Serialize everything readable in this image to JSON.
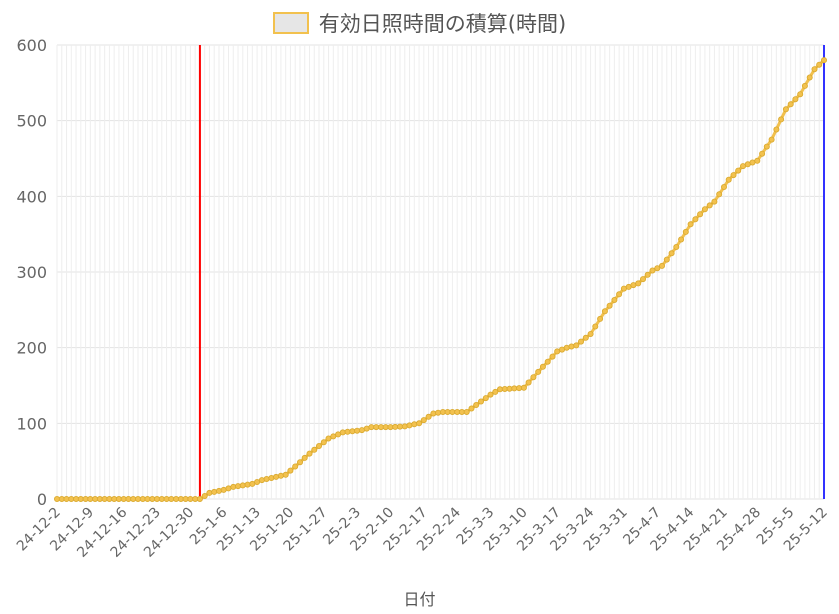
{
  "chart_data": {
    "type": "line",
    "title": "",
    "xlabel": "日付",
    "ylabel": "",
    "ylim": [
      0,
      600
    ],
    "yticks": [
      0,
      100,
      200,
      300,
      400,
      500,
      600
    ],
    "grid": true,
    "legend_position": "top",
    "x_tick_labels": [
      "24-12-2",
      "24-12-9",
      "24-12-16",
      "24-12-23",
      "24-12-30",
      "25-1-6",
      "25-1-13",
      "25-1-20",
      "25-1-27",
      "25-2-3",
      "25-2-10",
      "25-2-17",
      "25-2-24",
      "25-3-3",
      "25-3-10",
      "25-3-17",
      "25-3-24",
      "25-3-31",
      "25-4-7",
      "25-4-14",
      "25-4-21",
      "25-4-28",
      "25-5-5",
      "25-5-12"
    ],
    "x_start": "2024-12-02",
    "x_end": "2025-05-12",
    "marker_lines": [
      {
        "x": "2025-01-01",
        "color": "#ff0000"
      },
      {
        "x": "2025-05-12",
        "color": "#3333ff"
      }
    ],
    "series": [
      {
        "name": "有効日照時間の積算(時間)",
        "color": "#f2c14e",
        "fill": "#e6e6e6",
        "points": [
          [
            "2024-12-02",
            0
          ],
          [
            "2024-12-30",
            0
          ],
          [
            "2025-01-01",
            0
          ],
          [
            "2025-01-03",
            8
          ],
          [
            "2025-01-06",
            12
          ],
          [
            "2025-01-08",
            16
          ],
          [
            "2025-01-12",
            20
          ],
          [
            "2025-01-14",
            25
          ],
          [
            "2025-01-19",
            32
          ],
          [
            "2025-01-21",
            43
          ],
          [
            "2025-01-24",
            60
          ],
          [
            "2025-01-28",
            80
          ],
          [
            "2025-01-31",
            88
          ],
          [
            "2025-02-04",
            91
          ],
          [
            "2025-02-06",
            95
          ],
          [
            "2025-02-10",
            95
          ],
          [
            "2025-02-13",
            96
          ],
          [
            "2025-02-16",
            100
          ],
          [
            "2025-02-19",
            113
          ],
          [
            "2025-02-21",
            115
          ],
          [
            "2025-02-26",
            115
          ],
          [
            "2025-03-03",
            138
          ],
          [
            "2025-03-05",
            145
          ],
          [
            "2025-03-10",
            147
          ],
          [
            "2025-03-13",
            168
          ],
          [
            "2025-03-17",
            195
          ],
          [
            "2025-03-19",
            200
          ],
          [
            "2025-03-21",
            203
          ],
          [
            "2025-03-24",
            218
          ],
          [
            "2025-03-27",
            248
          ],
          [
            "2025-03-31",
            278
          ],
          [
            "2025-04-03",
            285
          ],
          [
            "2025-04-06",
            302
          ],
          [
            "2025-04-08",
            308
          ],
          [
            "2025-04-11",
            333
          ],
          [
            "2025-04-14",
            363
          ],
          [
            "2025-04-17",
            383
          ],
          [
            "2025-04-19",
            393
          ],
          [
            "2025-04-22",
            422
          ],
          [
            "2025-04-25",
            440
          ],
          [
            "2025-04-28",
            447
          ],
          [
            "2025-05-01",
            475
          ],
          [
            "2025-05-04",
            515
          ],
          [
            "2025-05-07",
            535
          ],
          [
            "2025-05-10",
            568
          ],
          [
            "2025-05-12",
            580
          ]
        ]
      }
    ]
  }
}
